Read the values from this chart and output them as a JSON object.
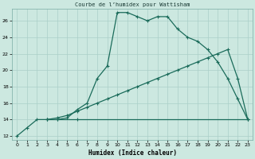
{
  "title": "Courbe de l’humidex pour Wattisham",
  "xlabel": "Humidex (Indice chaleur)",
  "bg_color": "#cce8e0",
  "grid_color": "#aacfc8",
  "line_color": "#1a6b5a",
  "xlim_min": -0.5,
  "xlim_max": 23.5,
  "ylim_min": 11.5,
  "ylim_max": 27.5,
  "xticks": [
    0,
    1,
    2,
    3,
    4,
    5,
    6,
    7,
    8,
    9,
    10,
    11,
    12,
    13,
    14,
    15,
    16,
    17,
    18,
    19,
    20,
    21,
    22,
    23
  ],
  "yticks": [
    12,
    14,
    16,
    18,
    20,
    22,
    24,
    26
  ],
  "curve1_x": [
    0,
    1,
    2,
    3,
    4,
    5,
    6,
    7,
    8,
    9,
    10,
    11,
    12,
    13,
    14,
    15,
    16,
    17,
    18,
    19,
    20,
    21,
    22,
    23
  ],
  "curve1_y": [
    12,
    13,
    14,
    14,
    14,
    14.2,
    15.2,
    16,
    19.0,
    20.5,
    27.0,
    27.0,
    26.5,
    26.0,
    26.5,
    26.5,
    25.0,
    24.0,
    23.5,
    22.5,
    21.0,
    19.0,
    16.5,
    14.0
  ],
  "curve2_x": [
    3,
    4,
    5,
    6,
    7,
    8,
    9,
    10,
    11,
    12,
    13,
    14,
    15,
    16,
    17,
    18,
    19,
    20,
    21,
    22,
    23
  ],
  "curve2_y": [
    14,
    14.2,
    14.5,
    15.0,
    15.5,
    16.0,
    16.5,
    17.0,
    17.5,
    18.0,
    18.5,
    19.0,
    19.5,
    20.0,
    20.5,
    21.0,
    21.5,
    22.0,
    22.5,
    19.0,
    14.0
  ],
  "curve3_x": [
    3,
    4,
    6,
    23
  ],
  "curve3_y": [
    14,
    14.0,
    14.0,
    14.0
  ]
}
